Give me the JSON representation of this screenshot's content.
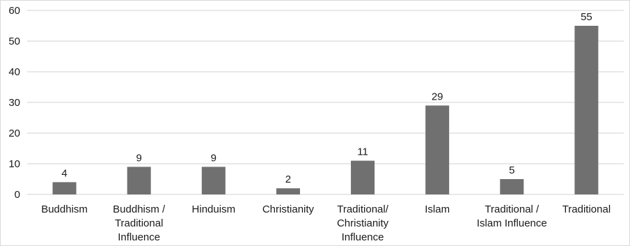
{
  "chart_data": {
    "type": "bar",
    "categories": [
      "Buddhism",
      "Buddhism / Traditional Influence",
      "Hinduism",
      "Christianity",
      "Traditional/ Christianity Influence",
      "Islam",
      "Traditional / Islam Influence",
      "Traditional"
    ],
    "category_lines": [
      [
        "Buddhism"
      ],
      [
        "Buddhism /",
        "Traditional",
        "Influence"
      ],
      [
        "Hinduism"
      ],
      [
        "Christianity"
      ],
      [
        "Traditional/",
        "Christianity",
        "Influence"
      ],
      [
        "Islam"
      ],
      [
        "Traditional /",
        "Islam Influence"
      ],
      [
        "Traditional"
      ]
    ],
    "values": [
      4,
      9,
      9,
      2,
      11,
      29,
      5,
      55
    ],
    "data_labels": [
      "4",
      "9",
      "9",
      "2",
      "11",
      "29",
      "5",
      "55"
    ],
    "yticks": [
      0,
      10,
      20,
      30,
      40,
      50,
      60
    ],
    "ylim": [
      0,
      60
    ],
    "grid": true,
    "legend": "none",
    "title": "",
    "xlabel": "",
    "ylabel": "",
    "colors": {
      "bar": "#707070",
      "grid": "#d9d9d9",
      "text": "#1a1a1a"
    }
  }
}
